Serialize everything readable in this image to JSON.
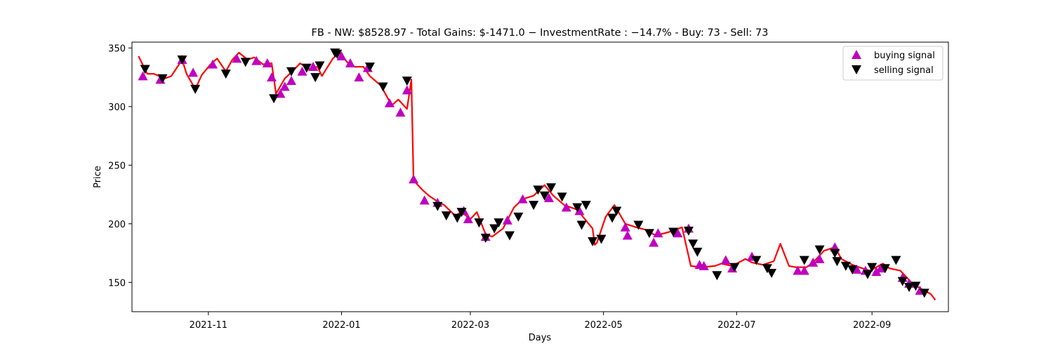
{
  "chart_data": {
    "type": "line",
    "title": "FB - NW: $8528.97 - Total Gains: $-1471.0 − InvestmentRate : −14.7% - Buy: 73 - Sell: 73",
    "xlabel": "Days",
    "ylabel": "Price",
    "xlim": [
      "2021-09-27",
      "2022-10-06"
    ],
    "ylim": [
      125,
      355
    ],
    "x_ticks": [
      "2021-11-01",
      "2022-01-01",
      "2022-03-01",
      "2022-05-01",
      "2022-07-01",
      "2022-09-01"
    ],
    "x_tick_labels": [
      "2021-11",
      "2022-01",
      "2022-03",
      "2022-05",
      "2022-07",
      "2022-09"
    ],
    "y_ticks": [
      150,
      200,
      250,
      300,
      350
    ],
    "legend_position": "upper right",
    "series": [
      {
        "kind": "line",
        "color": "#ff0000",
        "x": [
          "2021-09-30",
          "2021-10-04",
          "2021-10-07",
          "2021-10-12",
          "2021-10-15",
          "2021-10-20",
          "2021-10-22",
          "2021-10-26",
          "2021-10-29",
          "2021-11-02",
          "2021-11-05",
          "2021-11-09",
          "2021-11-12",
          "2021-11-15",
          "2021-11-19",
          "2021-11-22",
          "2021-11-26",
          "2021-11-30",
          "2021-12-02",
          "2021-12-06",
          "2021-12-10",
          "2021-12-13",
          "2021-12-17",
          "2021-12-21",
          "2021-12-23",
          "2021-12-28",
          "2021-12-31",
          "2022-01-04",
          "2022-01-07",
          "2022-01-11",
          "2022-01-14",
          "2022-01-19",
          "2022-01-24",
          "2022-01-27",
          "2022-01-31",
          "2022-02-02",
          "2022-02-03",
          "2022-02-07",
          "2022-02-10",
          "2022-02-14",
          "2022-02-17",
          "2022-02-22",
          "2022-02-25",
          "2022-03-01",
          "2022-03-04",
          "2022-03-08",
          "2022-03-11",
          "2022-03-16",
          "2022-03-21",
          "2022-03-25",
          "2022-03-30",
          "2022-04-04",
          "2022-04-08",
          "2022-04-13",
          "2022-04-19",
          "2022-04-22",
          "2022-04-26",
          "2022-04-27",
          "2022-04-28",
          "2022-05-02",
          "2022-05-06",
          "2022-05-11",
          "2022-05-16",
          "2022-05-20",
          "2022-05-25",
          "2022-05-31",
          "2022-06-06",
          "2022-06-10",
          "2022-06-15",
          "2022-06-21",
          "2022-06-24",
          "2022-06-29",
          "2022-07-05",
          "2022-07-08",
          "2022-07-13",
          "2022-07-18",
          "2022-07-21",
          "2022-07-25",
          "2022-07-28",
          "2022-08-02",
          "2022-08-05",
          "2022-08-10",
          "2022-08-15",
          "2022-08-18",
          "2022-08-23",
          "2022-08-26",
          "2022-08-31",
          "2022-09-06",
          "2022-09-09",
          "2022-09-14",
          "2022-09-19",
          "2022-09-23",
          "2022-09-28",
          "2022-09-30"
        ],
        "y": [
          343,
          328,
          328,
          324,
          326,
          340,
          328,
          315,
          327,
          336,
          341,
          330,
          340,
          346,
          340,
          342,
          336,
          337,
          311,
          324,
          331,
          337,
          332,
          334,
          326,
          341,
          346,
          337,
          334,
          334,
          326,
          318,
          301,
          306,
          298,
          323,
          237,
          229,
          224,
          219,
          216,
          207,
          210,
          204,
          210,
          191,
          189,
          196,
          214,
          221,
          224,
          233,
          224,
          216,
          212,
          205,
          196,
          182,
          184,
          206,
          216,
          200,
          197,
          195,
          190,
          193,
          197,
          164,
          163,
          164,
          166,
          164,
          170,
          167,
          165,
          168,
          183,
          164,
          163,
          163,
          167,
          177,
          180,
          170,
          165,
          163,
          160,
          166,
          162,
          160,
          150,
          145,
          140,
          135
        ]
      },
      {
        "kind": "markers",
        "name": "buying signal",
        "marker": "triangle-up",
        "color": "#bf00bf",
        "x": [
          "2021-10-02",
          "2021-10-10",
          "2021-10-20",
          "2021-10-25",
          "2021-11-03",
          "2021-11-14",
          "2021-11-23",
          "2021-11-28",
          "2021-11-30",
          "2021-12-04",
          "2021-12-06",
          "2021-12-09",
          "2021-12-14",
          "2021-12-19",
          "2022-01-01",
          "2022-01-05",
          "2022-01-09",
          "2022-01-13",
          "2022-01-23",
          "2022-01-28",
          "2022-01-31",
          "2022-02-03",
          "2022-02-08",
          "2022-02-14",
          "2022-02-26",
          "2022-02-28",
          "2022-03-08",
          "2022-03-18",
          "2022-03-25",
          "2022-04-06",
          "2022-04-14",
          "2022-04-20",
          "2022-05-11",
          "2022-05-12",
          "2022-05-24",
          "2022-05-26",
          "2022-06-04",
          "2022-06-09",
          "2022-06-14",
          "2022-06-16",
          "2022-06-26",
          "2022-06-29",
          "2022-07-08",
          "2022-07-29",
          "2022-08-01",
          "2022-08-05",
          "2022-08-08",
          "2022-08-15",
          "2022-08-25",
          "2022-08-29",
          "2022-09-03",
          "2022-09-05",
          "2022-09-15",
          "2022-09-18",
          "2022-09-23"
        ],
        "y": [
          326,
          323,
          340,
          329,
          336,
          341,
          339,
          337,
          325,
          311,
          317,
          322,
          330,
          334,
          343,
          337,
          325,
          333,
          303,
          295,
          314,
          238,
          220,
          218,
          211,
          204,
          189,
          203,
          221,
          222,
          214,
          211,
          197,
          190,
          184,
          192,
          192,
          196,
          165,
          164,
          169,
          162,
          172,
          160,
          160,
          167,
          170,
          180,
          161,
          160,
          159,
          162,
          154,
          149,
          143
        ]
      },
      {
        "kind": "markers",
        "name": "selling signal",
        "marker": "triangle-down",
        "color": "#000000",
        "x": [
          "2021-10-03",
          "2021-10-11",
          "2021-10-20",
          "2021-10-26",
          "2021-11-09",
          "2021-11-18",
          "2021-12-01",
          "2021-12-09",
          "2021-12-16",
          "2021-12-20",
          "2021-12-22",
          "2021-12-29",
          "2021-12-30",
          "2022-01-14",
          "2022-01-20",
          "2022-01-31",
          "2022-02-14",
          "2022-02-18",
          "2022-02-23",
          "2022-02-25",
          "2022-03-05",
          "2022-03-08",
          "2022-03-12",
          "2022-03-14",
          "2022-03-19",
          "2022-03-23",
          "2022-03-30",
          "2022-04-01",
          "2022-04-04",
          "2022-04-07",
          "2022-04-12",
          "2022-04-19",
          "2022-04-21",
          "2022-04-23",
          "2022-04-26",
          "2022-04-30",
          "2022-05-05",
          "2022-05-07",
          "2022-05-17",
          "2022-05-22",
          "2022-06-02",
          "2022-06-09",
          "2022-06-11",
          "2022-06-13",
          "2022-06-22",
          "2022-06-30",
          "2022-07-10",
          "2022-07-15",
          "2022-07-17",
          "2022-08-01",
          "2022-08-08",
          "2022-08-15",
          "2022-08-16",
          "2022-08-20",
          "2022-08-23",
          "2022-08-30",
          "2022-09-01",
          "2022-09-07",
          "2022-09-12",
          "2022-09-15",
          "2022-09-18",
          "2022-09-21",
          "2022-09-25"
        ],
        "y": [
          332,
          324,
          340,
          315,
          328,
          338,
          307,
          330,
          333,
          325,
          335,
          346,
          345,
          334,
          317,
          322,
          215,
          207,
          205,
          210,
          201,
          188,
          196,
          201,
          190,
          206,
          216,
          229,
          224,
          231,
          223,
          214,
          199,
          216,
          185,
          187,
          205,
          211,
          199,
          192,
          193,
          194,
          183,
          176,
          156,
          163,
          169,
          162,
          158,
          169,
          178,
          175,
          168,
          164,
          161,
          157,
          163,
          162,
          169,
          151,
          146,
          147,
          141
        ]
      }
    ]
  }
}
